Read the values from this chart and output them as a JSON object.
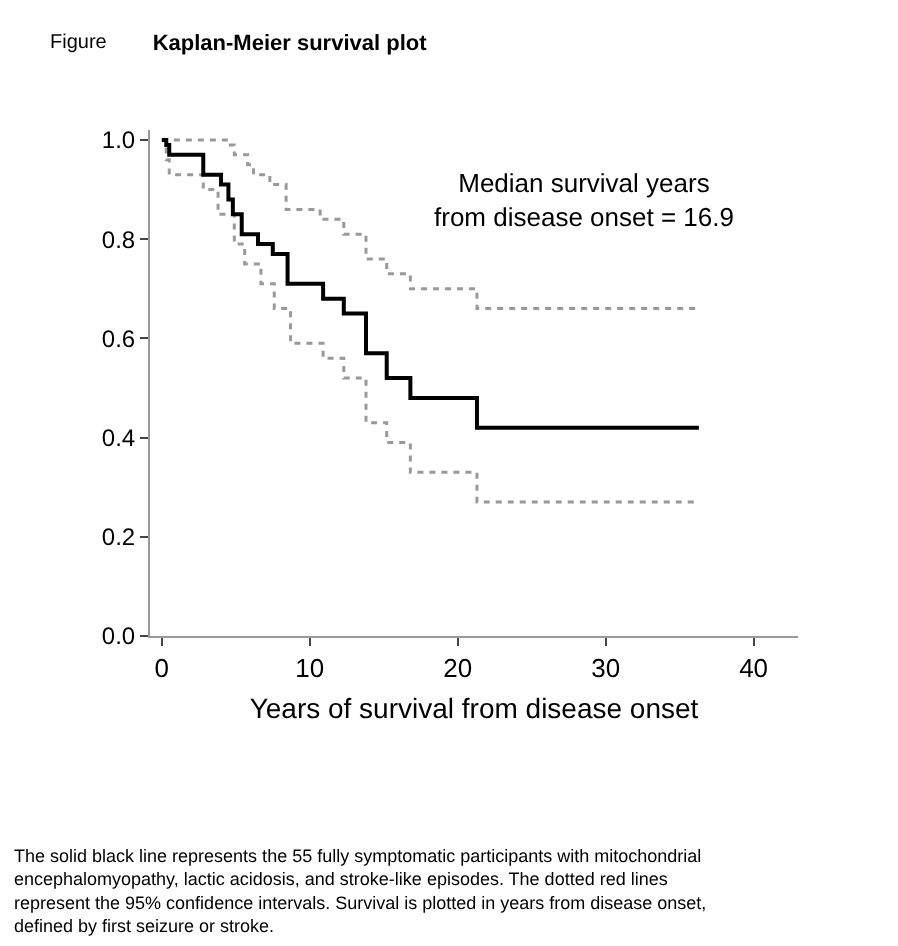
{
  "chart_data": {
    "type": "step",
    "title": "Kaplan-Meier survival plot",
    "xlabel": "Years of survival from disease onset",
    "annotations": [
      "Figure",
      "Median survival years\nfrom disease onset = 16.9",
      "The solid black line represents the 55 fully symptomatic participants with mitochondrial encephalomyopathy, lactic acidosis, and stroke-like episodes. The dotted red lines represent the 95% confidence intervals. Survival is plotted in years from disease onset, defined by first seizure or stroke."
    ],
    "xlim": [
      -0.8,
      43
    ],
    "xticks": [
      0,
      10,
      20,
      30,
      40
    ],
    "ylim": [
      0,
      1.02
    ],
    "yticks": [
      {
        "value": 0,
        "label": "0.0"
      },
      0.2,
      0.4,
      0.6,
      0.8,
      {
        "value": 1,
        "label": "1.0"
      }
    ],
    "series": [
      {
        "color": "#999999",
        "line_style": "dotted",
        "x": [
          0,
          4.0,
          4.5,
          4.9,
          5.8,
          6.2,
          7.3,
          8.4,
          10.7,
          12.3,
          13.8,
          15.2,
          16.8,
          21.3,
          36.3
        ],
        "values": [
          1.0,
          1.0,
          0.99,
          0.97,
          0.95,
          0.93,
          0.91,
          0.86,
          0.84,
          0.81,
          0.76,
          0.73,
          0.7,
          0.66,
          0.66
        ]
      },
      {
        "color": "#999999",
        "line_style": "dotted",
        "x": [
          0,
          0.3,
          0.5,
          2.8,
          3.8,
          4.9,
          5.6,
          6.7,
          7.6,
          8.7,
          10.9,
          12.3,
          13.8,
          15.2,
          16.8,
          21.3,
          36.3
        ],
        "values": [
          1.0,
          0.96,
          0.93,
          0.9,
          0.85,
          0.79,
          0.75,
          0.71,
          0.66,
          0.59,
          0.56,
          0.52,
          0.43,
          0.39,
          0.33,
          0.27,
          0.27
        ]
      },
      {
        "color": "#000000",
        "line_style": "solid",
        "x": [
          0,
          0.3,
          0.5,
          2.8,
          4.0,
          4.5,
          4.8,
          5.4,
          6.5,
          7.5,
          8.5,
          10.9,
          12.3,
          13.8,
          15.2,
          16.8,
          21.3,
          36.3
        ],
        "values": [
          1.0,
          0.99,
          0.97,
          0.93,
          0.91,
          0.88,
          0.85,
          0.81,
          0.79,
          0.77,
          0.71,
          0.68,
          0.65,
          0.57,
          0.52,
          0.48,
          0.42,
          0.42
        ]
      }
    ]
  }
}
